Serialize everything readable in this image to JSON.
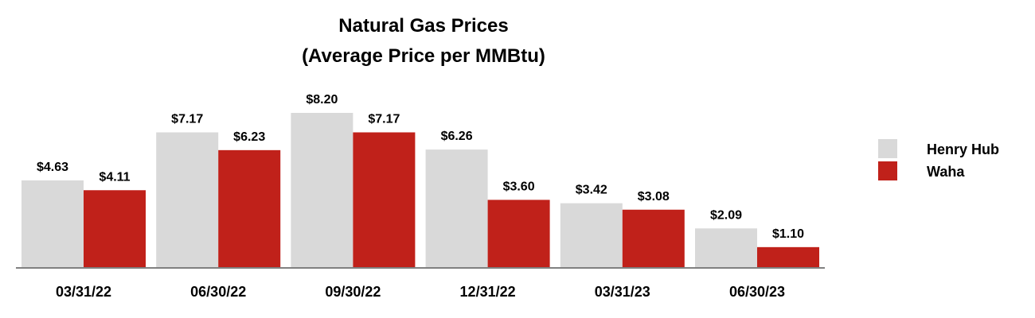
{
  "chart_data": {
    "type": "bar",
    "title": "Natural Gas Prices",
    "subtitle": "(Average Price per MMBtu)",
    "xlabel": "",
    "ylabel": "",
    "categories": [
      "03/31/22",
      "06/30/22",
      "09/30/22",
      "12/31/22",
      "03/31/23",
      "06/30/23"
    ],
    "series": [
      {
        "name": "Henry Hub",
        "color": "#d9d9d9",
        "values": [
          4.63,
          7.17,
          8.2,
          6.26,
          3.42,
          2.09
        ],
        "labels": [
          "$4.63",
          "$7.17",
          "$8.20",
          "$6.26",
          "$3.42",
          "$2.09"
        ]
      },
      {
        "name": "Waha",
        "color": "#c0211a",
        "values": [
          4.11,
          6.23,
          7.17,
          3.6,
          3.08,
          1.1
        ],
        "labels": [
          "$4.11",
          "$6.23",
          "$7.17",
          "$3.60",
          "$3.08",
          "$1.10"
        ]
      }
    ],
    "ylim": [
      0,
      8.2
    ],
    "grid": false,
    "legend": "right"
  }
}
